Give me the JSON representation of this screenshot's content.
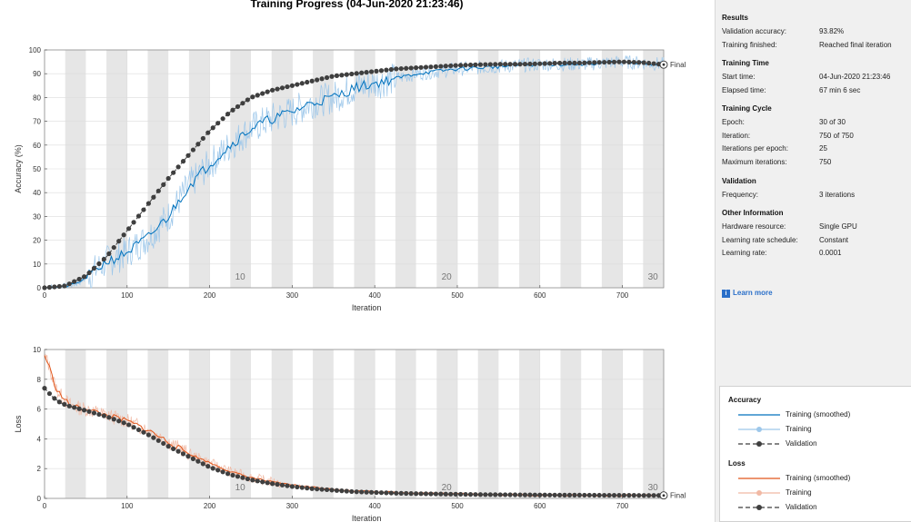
{
  "title": "Training Progress (04-Jun-2020 21:23:46)",
  "colors": {
    "accuracy_smoothed": "#0072bd",
    "accuracy_training": "#9dc7ea",
    "validation": "#3f3f3f",
    "loss_smoothed": "#e0561b",
    "loss_training": "#f1b9a4",
    "epoch_band": "#e6e6e6",
    "grid": "#dcdcdc"
  },
  "chart_data": [
    {
      "type": "line",
      "name": "accuracy",
      "xlabel": "Iteration",
      "ylabel": "Accuracy (%)",
      "xlim": [
        0,
        750
      ],
      "ylim": [
        0,
        100
      ],
      "xticks": [
        0,
        100,
        200,
        300,
        400,
        500,
        600,
        700
      ],
      "yticks": [
        0,
        10,
        20,
        30,
        40,
        50,
        60,
        70,
        80,
        90,
        100
      ],
      "epoch_labels": [
        {
          "iteration": 237,
          "label": "10"
        },
        {
          "iteration": 487,
          "label": "20"
        },
        {
          "iteration": 737,
          "label": "30"
        }
      ],
      "iterations_per_epoch": 25,
      "final_label": "Final",
      "final_value": 93.82,
      "series": [
        {
          "name": "Training (smoothed)",
          "x": [
            0,
            25,
            40,
            50,
            60,
            75,
            90,
            100,
            125,
            150,
            175,
            200,
            225,
            250,
            275,
            300,
            325,
            350,
            375,
            400,
            425,
            450,
            475,
            500,
            550,
            600,
            650,
            700,
            750
          ],
          "y": [
            0,
            0.5,
            2,
            4,
            7,
            11,
            13,
            15,
            21,
            30,
            43,
            52,
            60,
            67,
            71,
            74,
            78,
            80,
            84,
            86,
            88,
            90,
            91,
            92,
            93,
            94,
            94,
            95,
            94
          ]
        },
        {
          "name": "Validation",
          "x": [
            0,
            25,
            50,
            75,
            100,
            125,
            150,
            175,
            200,
            225,
            250,
            275,
            300,
            325,
            350,
            375,
            400,
            425,
            450,
            475,
            500,
            525,
            550,
            575,
            600,
            625,
            650,
            675,
            700,
            725,
            750
          ],
          "y": [
            0,
            0.8,
            5,
            13,
            24,
            35,
            46,
            56,
            66,
            74,
            80,
            83,
            85,
            87,
            89,
            90,
            91,
            92,
            92.5,
            93,
            93.5,
            93.8,
            94,
            94,
            94.2,
            94.5,
            94.5,
            94.8,
            95,
            94.7,
            93.82
          ]
        }
      ]
    },
    {
      "type": "line",
      "name": "loss",
      "xlabel": "Iteration",
      "ylabel": "Loss",
      "xlim": [
        0,
        750
      ],
      "ylim": [
        0,
        10
      ],
      "xticks": [
        0,
        100,
        200,
        300,
        400,
        500,
        600,
        700
      ],
      "yticks": [
        0,
        2,
        4,
        6,
        8,
        10
      ],
      "epoch_labels": [
        {
          "iteration": 237,
          "label": "10"
        },
        {
          "iteration": 487,
          "label": "20"
        },
        {
          "iteration": 737,
          "label": "30"
        }
      ],
      "final_label": "Final",
      "final_value": 0.2,
      "series": [
        {
          "name": "Training (smoothed)",
          "x": [
            0,
            5,
            10,
            15,
            20,
            30,
            40,
            50,
            75,
            100,
            125,
            150,
            175,
            200,
            225,
            250,
            275,
            300,
            325,
            350,
            375,
            400,
            450,
            500,
            550,
            600,
            650,
            700,
            750
          ],
          "y": [
            9.6,
            9.0,
            8.0,
            7.3,
            6.9,
            6.3,
            6.1,
            6.0,
            5.6,
            5.2,
            4.6,
            3.8,
            3.0,
            2.4,
            1.8,
            1.4,
            1.1,
            0.9,
            0.75,
            0.6,
            0.5,
            0.45,
            0.35,
            0.3,
            0.25,
            0.22,
            0.2,
            0.2,
            0.18
          ]
        },
        {
          "name": "Validation",
          "x": [
            0,
            10,
            20,
            30,
            50,
            75,
            100,
            125,
            150,
            175,
            200,
            225,
            250,
            275,
            300,
            325,
            350,
            375,
            400,
            425,
            450,
            475,
            500,
            525,
            550,
            575,
            600,
            625,
            650,
            675,
            700,
            725,
            750
          ],
          "y": [
            7.4,
            6.8,
            6.4,
            6.2,
            5.9,
            5.5,
            5.0,
            4.3,
            3.5,
            2.8,
            2.1,
            1.6,
            1.25,
            1.0,
            0.8,
            0.65,
            0.55,
            0.45,
            0.4,
            0.35,
            0.32,
            0.3,
            0.28,
            0.26,
            0.25,
            0.24,
            0.23,
            0.22,
            0.22,
            0.21,
            0.21,
            0.2,
            0.2
          ]
        }
      ]
    }
  ],
  "sidebar": {
    "sections": [
      {
        "title": "Results",
        "rows": [
          {
            "label": "Validation accuracy:",
            "value": "93.82%"
          },
          {
            "label": "Training finished:",
            "value": "Reached final iteration"
          }
        ]
      },
      {
        "title": "Training Time",
        "rows": [
          {
            "label": "Start time:",
            "value": "04-Jun-2020 21:23:46"
          },
          {
            "label": "Elapsed time:",
            "value": "67 min 6 sec"
          }
        ]
      },
      {
        "title": "Training Cycle",
        "rows": [
          {
            "label": "Epoch:",
            "value": "30 of 30"
          },
          {
            "label": "Iteration:",
            "value": "750 of 750"
          },
          {
            "label": "Iterations per epoch:",
            "value": "25"
          },
          {
            "label": "Maximum iterations:",
            "value": "750"
          }
        ]
      },
      {
        "title": "Validation",
        "rows": [
          {
            "label": "Frequency:",
            "value": "3 iterations"
          }
        ]
      },
      {
        "title": "Other Information",
        "rows": [
          {
            "label": "Hardware resource:",
            "value": "Single GPU"
          },
          {
            "label": "Learning rate schedule:",
            "value": "Constant"
          },
          {
            "label": "Learning rate:",
            "value": "0.0001"
          }
        ]
      }
    ],
    "learn_more": "Learn more",
    "learn_more_icon": "info-icon"
  },
  "legend": {
    "accuracy": {
      "title": "Accuracy",
      "items": [
        {
          "label": "Training (smoothed)",
          "style": "line",
          "color": "#0072bd"
        },
        {
          "label": "Training",
          "style": "line-marker",
          "color": "#9dc7ea"
        },
        {
          "label": "Validation",
          "style": "dashed-marker",
          "color": "#3f3f3f"
        }
      ]
    },
    "loss": {
      "title": "Loss",
      "items": [
        {
          "label": "Training (smoothed)",
          "style": "line",
          "color": "#e0561b"
        },
        {
          "label": "Training",
          "style": "line-marker",
          "color": "#f1b9a4"
        },
        {
          "label": "Validation",
          "style": "dashed-marker",
          "color": "#3f3f3f"
        }
      ]
    }
  }
}
